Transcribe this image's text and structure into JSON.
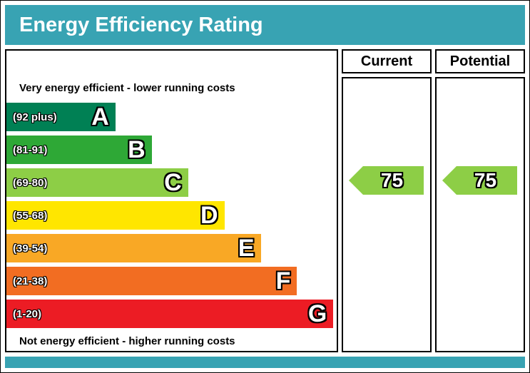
{
  "theme": {
    "teal": "#38A3B3",
    "border": "#000000"
  },
  "header": {
    "title": "Energy Efficiency Rating"
  },
  "captions": {
    "top": "Very energy efficient - lower running costs",
    "bottom": "Not energy efficient - higher running costs"
  },
  "bands": [
    {
      "letter": "A",
      "range": "(92 plus)",
      "color": "#008054",
      "width_pct": 33
    },
    {
      "letter": "B",
      "range": "(81-91)",
      "color": "#2EA836",
      "width_pct": 44
    },
    {
      "letter": "C",
      "range": "(69-80)",
      "color": "#8DCE46",
      "width_pct": 55
    },
    {
      "letter": "D",
      "range": "(55-68)",
      "color": "#FFE600",
      "width_pct": 66
    },
    {
      "letter": "E",
      "range": "(39-54)",
      "color": "#F9A825",
      "width_pct": 77
    },
    {
      "letter": "F",
      "range": "(21-38)",
      "color": "#F26D22",
      "width_pct": 88
    },
    {
      "letter": "G",
      "range": "(1-20)",
      "color": "#EC1C24",
      "width_pct": 99
    }
  ],
  "columns": {
    "current": {
      "label": "Current",
      "value": "75",
      "band_color": "#8DCE46"
    },
    "potential": {
      "label": "Potential",
      "value": "75",
      "band_color": "#8DCE46"
    }
  },
  "chart_data": {
    "type": "bar",
    "title": "Energy Efficiency Rating",
    "categories": [
      "A",
      "B",
      "C",
      "D",
      "E",
      "F",
      "G"
    ],
    "band_ranges": [
      "92 plus",
      "81-91",
      "69-80",
      "55-68",
      "39-54",
      "21-38",
      "1-20"
    ],
    "band_colors": [
      "#008054",
      "#2EA836",
      "#8DCE46",
      "#FFE600",
      "#F9A825",
      "#F26D22",
      "#EC1C24"
    ],
    "bar_relative_widths_pct": [
      33,
      44,
      55,
      66,
      77,
      88,
      99
    ],
    "values": {
      "current": 75,
      "potential": 75
    },
    "current_band": "C",
    "potential_band": "C",
    "annotations": [
      "Very energy efficient - lower running costs",
      "Not energy efficient - higher running costs"
    ],
    "legend_position": "none",
    "xlabel": "",
    "ylabel": ""
  }
}
